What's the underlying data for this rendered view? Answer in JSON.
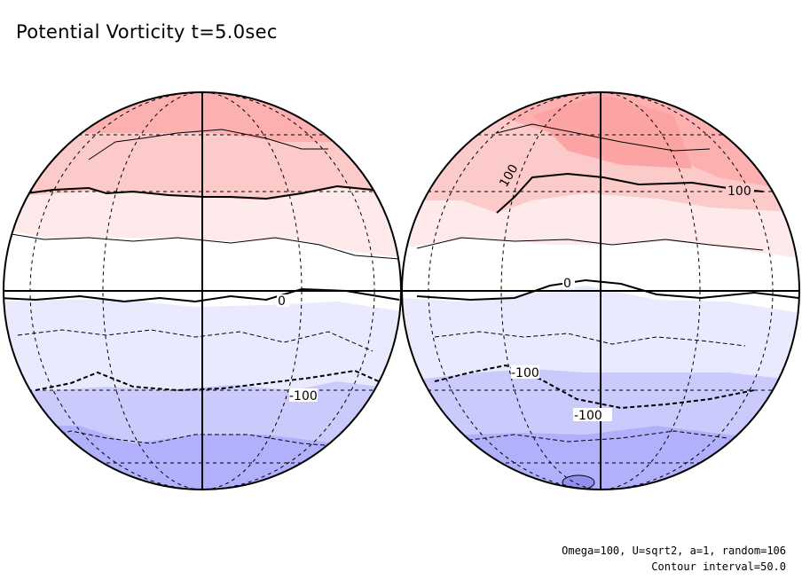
{
  "title": "Potential Vorticity t=5.0sec",
  "notes": {
    "params": "Omega=100, U=sqrt2, a=1, random=106",
    "interval": "Contour interval=50.0"
  },
  "chart_data": {
    "type": "contour",
    "title": "Potential Vorticity t=5.0sec",
    "projection": "orthographic",
    "hemisphere_views": [
      "left",
      "right"
    ],
    "contour_interval": 50.0,
    "contour_labels": [
      "0",
      "-100",
      "100"
    ],
    "colors": {
      "positive_strong": "#fdb0b0",
      "positive_mid": "#fdcaca",
      "positive_weak": "#feeaea",
      "neutral": "#ffffff",
      "negative_weak": "#eaeaff",
      "negative_mid": "#cacafd",
      "negative_strong": "#b0b0fd"
    },
    "band_levels": [
      150,
      100,
      50,
      0,
      -50,
      -100,
      -150
    ],
    "grid": true
  }
}
